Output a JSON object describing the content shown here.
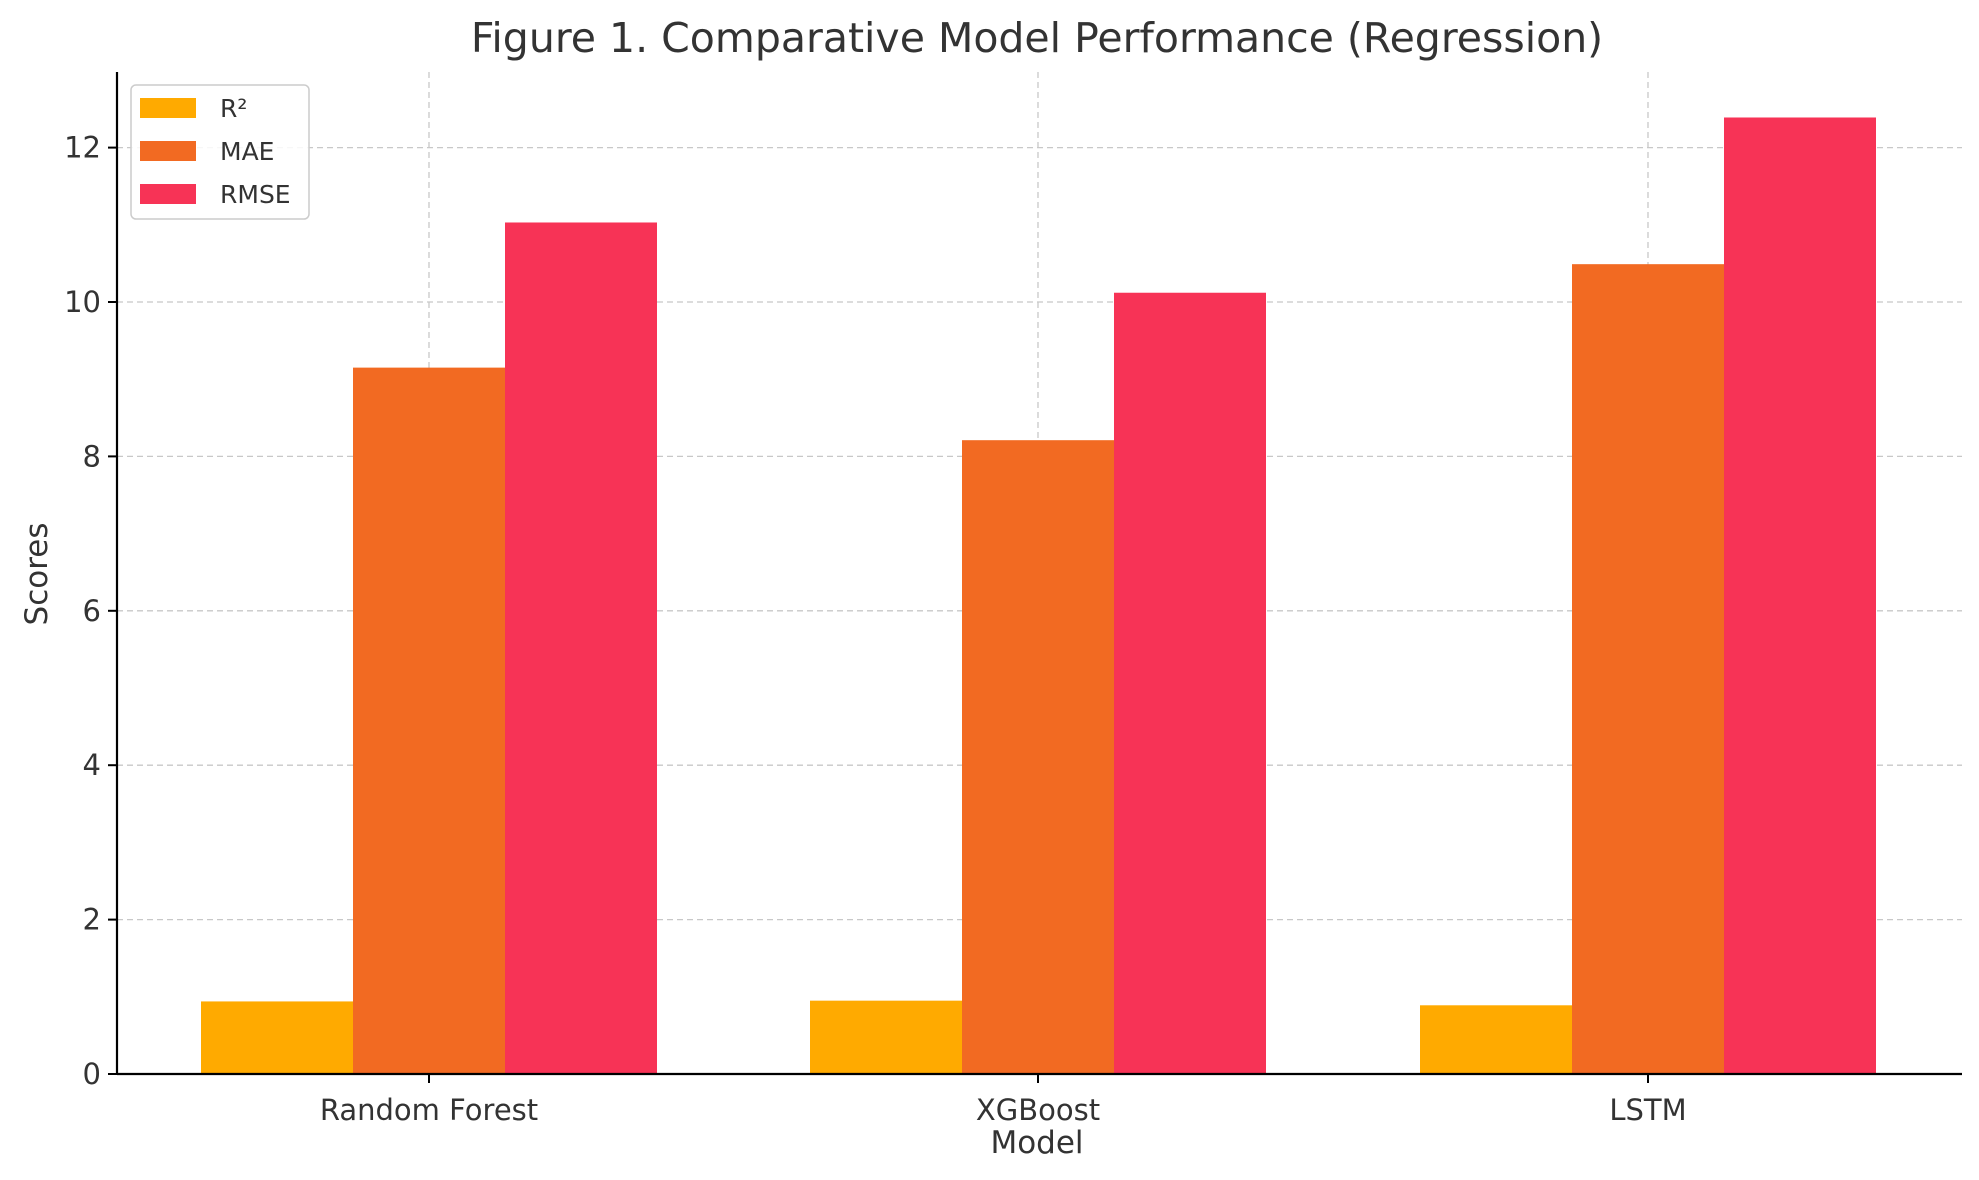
{
  "chart_data": {
    "type": "bar",
    "title": "Figure 1. Comparative Model Performance (Regression)",
    "xlabel": "Model",
    "ylabel": "Scores",
    "categories": [
      "Random Forest",
      "XGBoost",
      "LSTM"
    ],
    "series": [
      {
        "name": "R²",
        "color": "#FFAA00",
        "values": [
          0.94,
          0.95,
          0.89
        ]
      },
      {
        "name": "MAE",
        "color": "#F26A22",
        "values": [
          9.15,
          8.21,
          10.49
        ]
      },
      {
        "name": "RMSE",
        "color": "#F73356",
        "values": [
          11.03,
          10.12,
          12.39
        ]
      }
    ],
    "ylim": [
      0,
      13
    ],
    "yticks": [
      0,
      2,
      4,
      6,
      8,
      10,
      12
    ],
    "grid": true,
    "legend_position": "top-left"
  }
}
